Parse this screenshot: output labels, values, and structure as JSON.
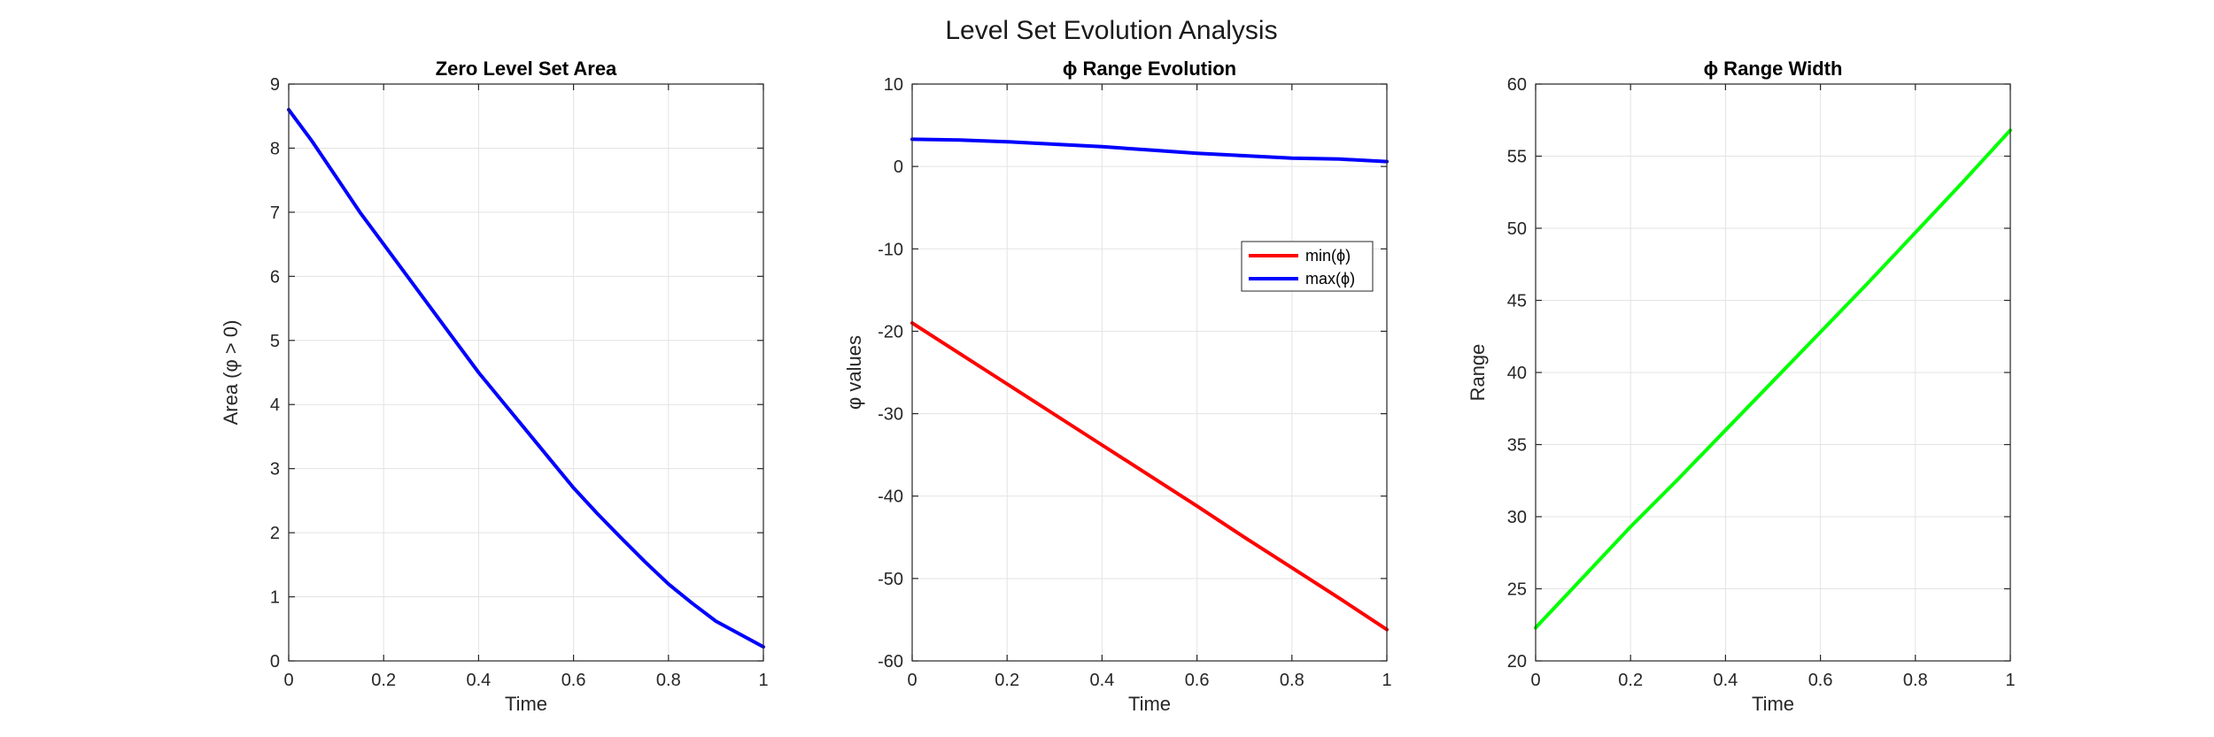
{
  "figure": {
    "title": "Level Set Evolution Analysis"
  },
  "chart_data": [
    {
      "type": "line",
      "title": "Zero Level Set Area",
      "xlabel": "Time",
      "ylabel": "Area (φ > 0)",
      "xlim": [
        0,
        1
      ],
      "ylim": [
        0,
        9
      ],
      "xticks": [
        0,
        0.2,
        0.4,
        0.6,
        0.8,
        1
      ],
      "xticklabels": [
        "0",
        "0.2",
        "0.4",
        "0.6",
        "0.8",
        "1"
      ],
      "yticks": [
        0,
        1,
        2,
        3,
        4,
        5,
        6,
        7,
        8,
        9
      ],
      "yticklabels": [
        "0",
        "1",
        "2",
        "3",
        "4",
        "5",
        "6",
        "7",
        "8",
        "9"
      ],
      "grid": true,
      "series": [
        {
          "color": "#0000ff",
          "x": [
            0,
            0.05,
            0.1,
            0.15,
            0.2,
            0.25,
            0.3,
            0.35,
            0.4,
            0.45,
            0.5,
            0.55,
            0.6,
            0.65,
            0.7,
            0.75,
            0.8,
            0.85,
            0.9,
            0.95,
            1
          ],
          "y": [
            8.6,
            8.1,
            7.55,
            7.0,
            6.5,
            6.0,
            5.5,
            5.0,
            4.5,
            4.05,
            3.6,
            3.15,
            2.7,
            2.3,
            1.92,
            1.55,
            1.2,
            0.9,
            0.62,
            0.42,
            0.22
          ]
        }
      ]
    },
    {
      "type": "line",
      "title": "ϕ Range Evolution",
      "xlabel": "Time",
      "ylabel": "φ values",
      "xlim": [
        0,
        1
      ],
      "ylim": [
        -60,
        10
      ],
      "xticks": [
        0,
        0.2,
        0.4,
        0.6,
        0.8,
        1
      ],
      "xticklabels": [
        "0",
        "0.2",
        "0.4",
        "0.6",
        "0.8",
        "1"
      ],
      "yticks": [
        -60,
        -50,
        -40,
        -30,
        -20,
        -10,
        0,
        10
      ],
      "yticklabels": [
        "-60",
        "-50",
        "-40",
        "-30",
        "-20",
        "-10",
        "0",
        "10"
      ],
      "grid": true,
      "legend": "upper-right",
      "series": [
        {
          "name": "min(ϕ)",
          "color": "#ff0000",
          "x": [
            0,
            0.1,
            0.2,
            0.3,
            0.4,
            0.5,
            0.6,
            0.7,
            0.8,
            0.9,
            1
          ],
          "y": [
            -19.0,
            -22.7,
            -26.4,
            -30.1,
            -33.8,
            -37.5,
            -41.2,
            -45.0,
            -48.7,
            -52.4,
            -56.2
          ]
        },
        {
          "name": "max(ϕ)",
          "color": "#0000ff",
          "x": [
            0,
            0.1,
            0.2,
            0.3,
            0.4,
            0.5,
            0.6,
            0.7,
            0.8,
            0.9,
            1
          ],
          "y": [
            3.3,
            3.2,
            3.0,
            2.7,
            2.4,
            2.0,
            1.6,
            1.3,
            1.0,
            0.9,
            0.6
          ]
        }
      ]
    },
    {
      "type": "line",
      "title": "ϕ Range Width",
      "xlabel": "Time",
      "ylabel": "Range",
      "xlim": [
        0,
        1
      ],
      "ylim": [
        20,
        60
      ],
      "xticks": [
        0,
        0.2,
        0.4,
        0.6,
        0.8,
        1
      ],
      "xticklabels": [
        "0",
        "0.2",
        "0.4",
        "0.6",
        "0.8",
        "1"
      ],
      "yticks": [
        20,
        25,
        30,
        35,
        40,
        45,
        50,
        55,
        60
      ],
      "yticklabels": [
        "20",
        "25",
        "30",
        "35",
        "40",
        "45",
        "50",
        "55",
        "60"
      ],
      "grid": true,
      "series": [
        {
          "color": "#00ff00",
          "x": [
            0,
            0.1,
            0.2,
            0.3,
            0.4,
            0.5,
            0.6,
            0.7,
            0.8,
            0.9,
            1
          ],
          "y": [
            22.3,
            25.8,
            29.3,
            32.6,
            36.0,
            39.4,
            42.8,
            46.2,
            49.7,
            53.2,
            56.8
          ]
        }
      ]
    }
  ]
}
